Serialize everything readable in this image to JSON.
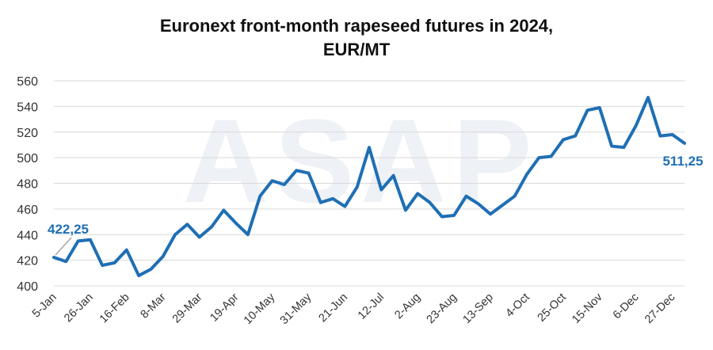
{
  "chart_data": {
    "type": "line",
    "title_line1": "Euronext front-month rapeseed futures in 2024,",
    "title_line2": "EUR/MT",
    "watermark": "ASAP",
    "ylim": [
      400,
      560
    ],
    "yticks": [
      400,
      420,
      440,
      460,
      480,
      500,
      520,
      540,
      560
    ],
    "grid": true,
    "x_tick_labels": [
      "5-Jan",
      "26-Jan",
      "16-Feb",
      "8-Mar",
      "29-Mar",
      "19-Apr",
      "10-May",
      "31-May",
      "21-Jun",
      "12-Jul",
      "2-Aug",
      "23-Aug",
      "13-Sep",
      "4-Oct",
      "25-Oct",
      "15-Nov",
      "6-Dec",
      "27-Dec"
    ],
    "series": [
      {
        "color": "#1f6fb4",
        "values": [
          422.25,
          419,
          435,
          436,
          416,
          418,
          428,
          408,
          413,
          423,
          440,
          448,
          438,
          446,
          459,
          449,
          440,
          470,
          482,
          479,
          490,
          488,
          465,
          468,
          462,
          477,
          508,
          475,
          486,
          459,
          472,
          465,
          454,
          455,
          470,
          464,
          456,
          463,
          470,
          487,
          500,
          501,
          514,
          517,
          537,
          539,
          509,
          508,
          525,
          547,
          517,
          518,
          511.25
        ]
      }
    ],
    "annotations": [
      {
        "label": "422,25",
        "point": "first"
      },
      {
        "label": "511,25",
        "point": "last"
      }
    ]
  }
}
